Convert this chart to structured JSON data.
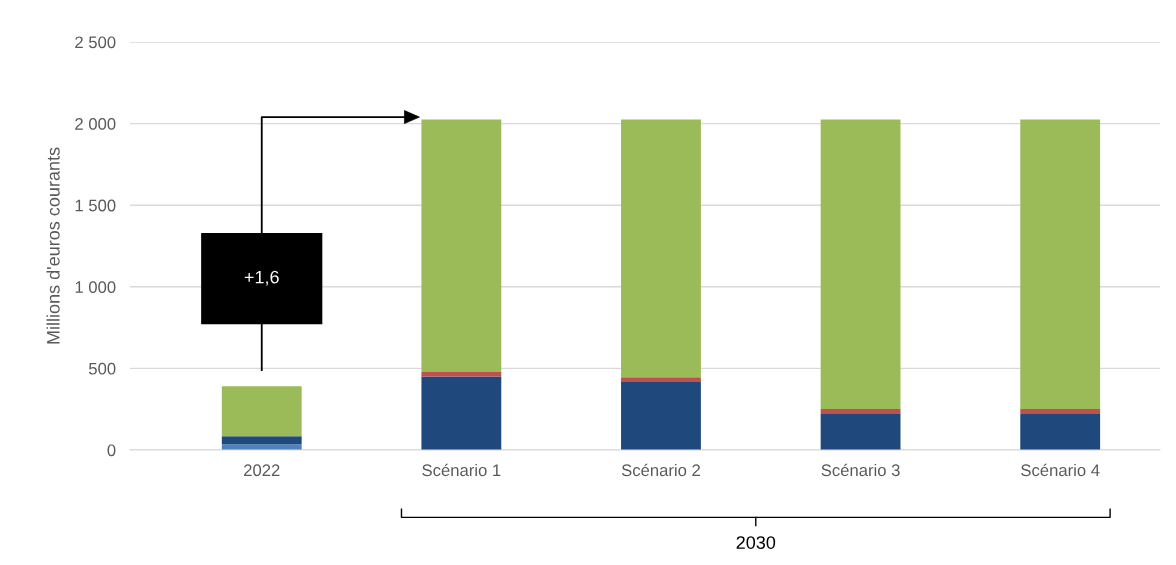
{
  "chart_data": {
    "type": "bar",
    "stacked": true,
    "ylabel": "Millions d'euros courants",
    "categories": [
      "2022",
      "Scénario 1",
      "Scénario 2",
      "Scénario 3",
      "Scénario 4"
    ],
    "series": [
      {
        "color": "#4f81bd",
        "values": [
          35,
          0,
          0,
          0,
          0
        ]
      },
      {
        "color": "#1f497d",
        "values": [
          50,
          450,
          416,
          220,
          220
        ]
      },
      {
        "color": "#c0504d",
        "values": [
          0,
          28,
          30,
          31,
          31
        ]
      },
      {
        "color": "#9bbb59",
        "values": [
          305,
          1547,
          1579,
          1774,
          1774
        ]
      }
    ],
    "ylim": [
      0,
      2500
    ],
    "yticks": [
      0,
      500,
      {
        "value": 1000,
        "label": "1 000"
      },
      {
        "value": 1500,
        "label": "1 500"
      },
      {
        "value": 2000,
        "label": "2 000"
      },
      {
        "value": 2500,
        "label": "2 500"
      }
    ],
    "grid": "y",
    "annotations": [
      "+1,6",
      "2030"
    ]
  }
}
